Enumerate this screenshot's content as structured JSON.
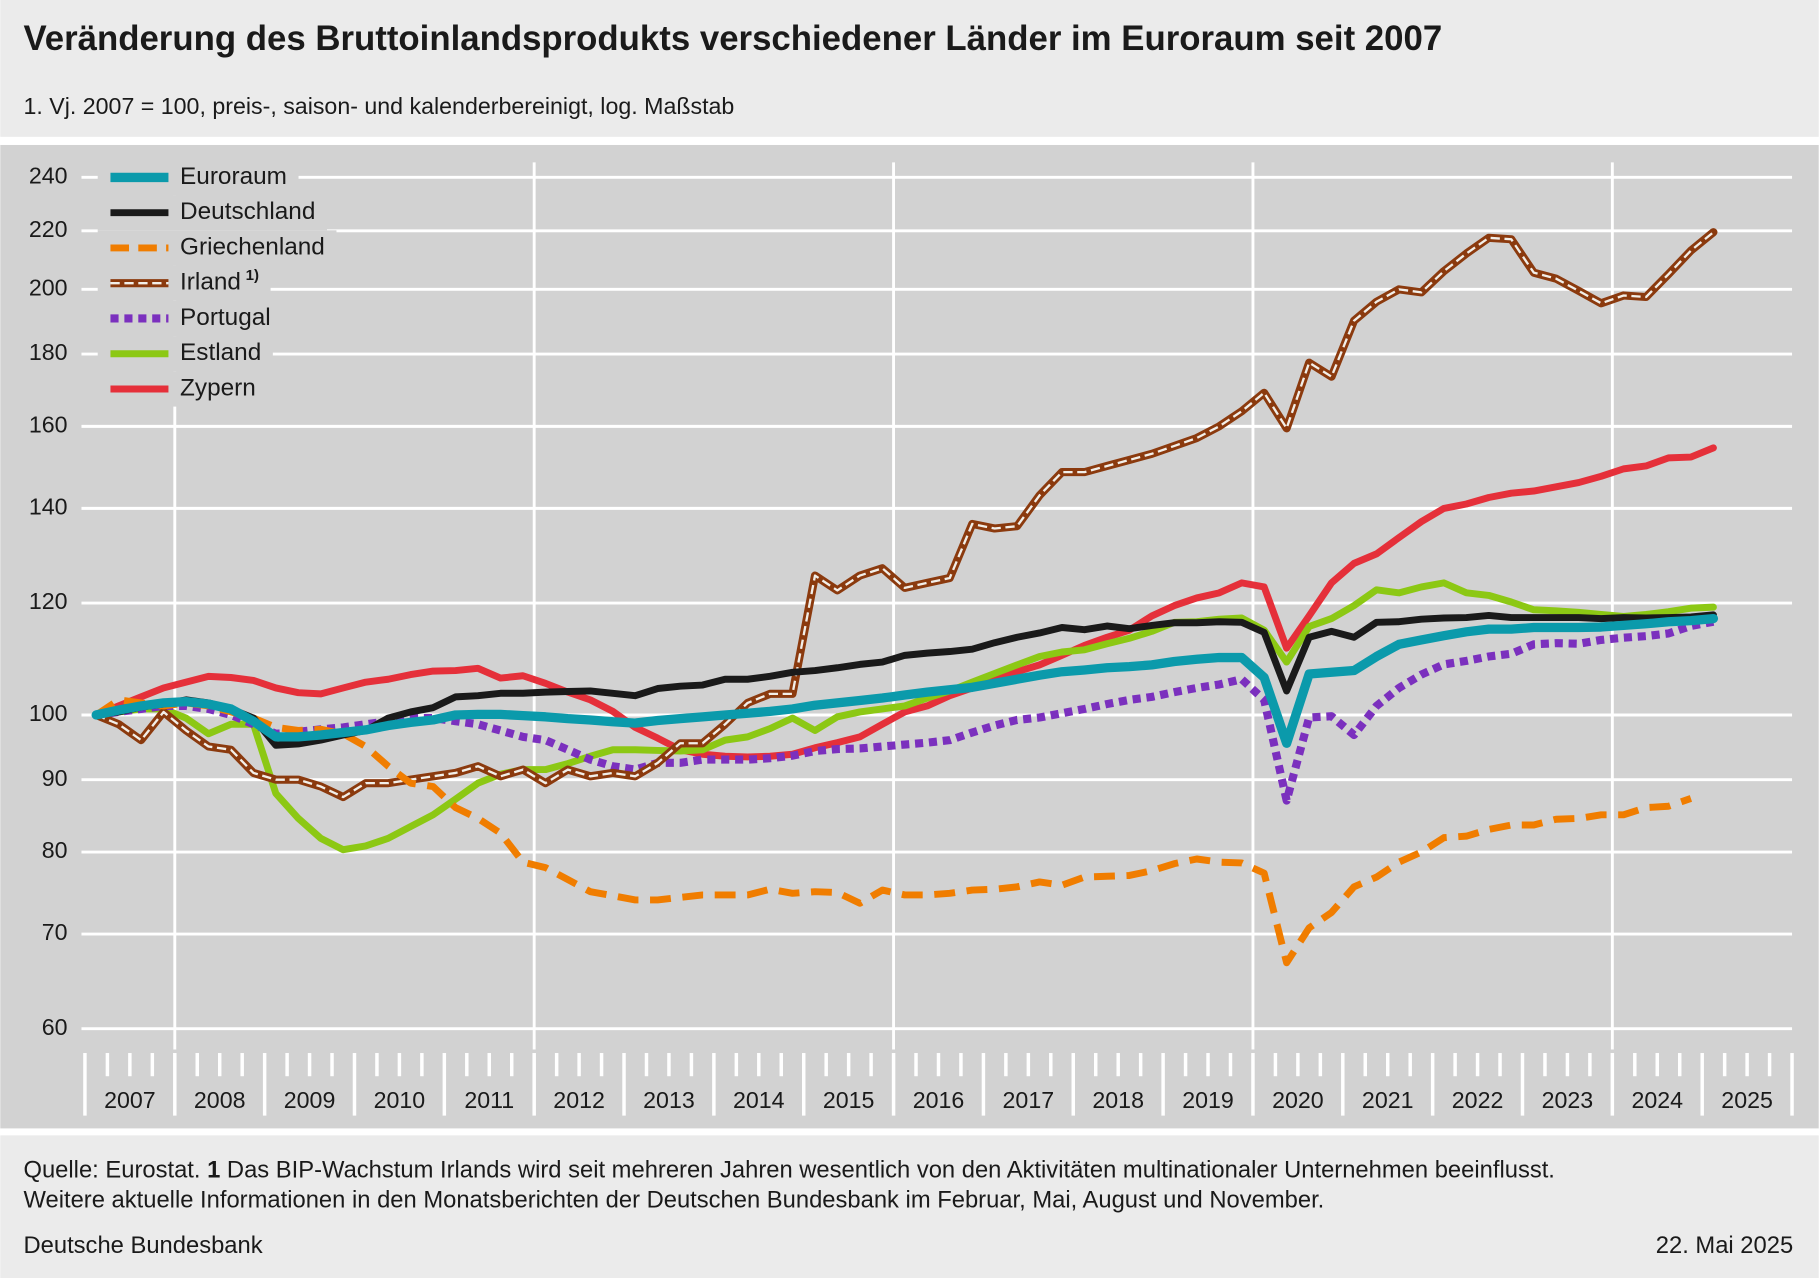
{
  "chart_data": {
    "type": "line",
    "title": "Veränderung des Bruttoinlandsprodukts verschiedener Länder im Euroraum seit 2007",
    "subtitle": "1. Vj. 2007 = 100, preis-, saison- und kalenderbereinigt, log. Maßstab",
    "log_scale": true,
    "grid": true,
    "legend": "upper left",
    "ylim": [
      58,
      253
    ],
    "yticks": [
      60,
      70,
      80,
      90,
      100,
      120,
      140,
      160,
      180,
      200,
      220,
      240
    ],
    "xlim": [
      2007,
      2026
    ],
    "xticks": [
      {
        "value": 2007.5,
        "label": "2007"
      },
      {
        "value": 2008.5,
        "label": "2008"
      },
      {
        "value": 2009.5,
        "label": "2009"
      },
      {
        "value": 2010.5,
        "label": "2010"
      },
      {
        "value": 2011.5,
        "label": "2011"
      },
      {
        "value": 2012.5,
        "label": "2012"
      },
      {
        "value": 2013.5,
        "label": "2013"
      },
      {
        "value": 2014.5,
        "label": "2014"
      },
      {
        "value": 2015.5,
        "label": "2015"
      },
      {
        "value": 2016.5,
        "label": "2016"
      },
      {
        "value": 2017.5,
        "label": "2017"
      },
      {
        "value": 2018.5,
        "label": "2018"
      },
      {
        "value": 2019.5,
        "label": "2019"
      },
      {
        "value": 2020.5,
        "label": "2020"
      },
      {
        "value": 2021.5,
        "label": "2021"
      },
      {
        "value": 2022.5,
        "label": "2022"
      },
      {
        "value": 2023.5,
        "label": "2023"
      },
      {
        "value": 2024.5,
        "label": "2024"
      },
      {
        "value": 2025.5,
        "label": "2025"
      }
    ],
    "xgrid_lines": [
      2008,
      2012,
      2016,
      2020,
      2024
    ],
    "x": [
      2007.125,
      2007.375,
      2007.625,
      2007.875,
      2008.125,
      2008.375,
      2008.625,
      2008.875,
      2009.125,
      2009.375,
      2009.625,
      2009.875,
      2010.125,
      2010.375,
      2010.625,
      2010.875,
      2011.125,
      2011.375,
      2011.625,
      2011.875,
      2012.125,
      2012.375,
      2012.625,
      2012.875,
      2013.125,
      2013.375,
      2013.625,
      2013.875,
      2014.125,
      2014.375,
      2014.625,
      2014.875,
      2015.125,
      2015.375,
      2015.625,
      2015.875,
      2016.125,
      2016.375,
      2016.625,
      2016.875,
      2017.125,
      2017.375,
      2017.625,
      2017.875,
      2018.125,
      2018.375,
      2018.625,
      2018.875,
      2019.125,
      2019.375,
      2019.625,
      2019.875,
      2020.125,
      2020.375,
      2020.625,
      2020.875,
      2021.125,
      2021.375,
      2021.625,
      2021.875,
      2022.125,
      2022.375,
      2022.625,
      2022.875,
      2023.125,
      2023.375,
      2023.625,
      2023.875,
      2024.125,
      2024.375,
      2024.625,
      2024.875,
      2025.125
    ],
    "series": [
      {
        "name": "Euroraum",
        "color": "#0b9aab",
        "line_style": "solid",
        "values": [
          100,
          100.8,
          101.5,
          102,
          102.2,
          101.8,
          101,
          99,
          96.5,
          96.5,
          96.8,
          97.2,
          97.6,
          98.3,
          98.8,
          99.2,
          100,
          100.1,
          100.1,
          99.9,
          99.7,
          99.4,
          99.2,
          98.9,
          98.7,
          99.1,
          99.4,
          99.7,
          100,
          100.3,
          100.6,
          101,
          101.6,
          102,
          102.4,
          102.8,
          103.3,
          103.8,
          104.2,
          104.6,
          105.3,
          106,
          106.7,
          107.3,
          107.6,
          108,
          108.2,
          108.5,
          109.1,
          109.5,
          109.8,
          109.8,
          106.3,
          95.5,
          106.9,
          107.2,
          107.5,
          110,
          112.2,
          113,
          113.8,
          114.5,
          115,
          115,
          115.3,
          115.3,
          115.3,
          115.4,
          115.7,
          116,
          116.4,
          116.6,
          117
        ]
      },
      {
        "name": "Deutschland",
        "color": "#1a1a1a",
        "line_style": "solid",
        "values": [
          100,
          100.5,
          101.3,
          101.8,
          102.5,
          102,
          101,
          99.5,
          95.2,
          95.4,
          96,
          96.8,
          97.5,
          99.5,
          100.5,
          101.2,
          103,
          103.2,
          103.6,
          103.6,
          103.8,
          103.9,
          104,
          103.6,
          103.2,
          104.4,
          104.8,
          105,
          106,
          106,
          106.5,
          107.2,
          107.5,
          108,
          108.6,
          109,
          110.2,
          110.6,
          110.9,
          111.3,
          112.5,
          113.5,
          114.3,
          115.3,
          114.9,
          115.6,
          115.1,
          115.7,
          116.2,
          116.2,
          116.4,
          116.3,
          114.4,
          104,
          113.5,
          114.6,
          113.5,
          116.3,
          116.4,
          116.9,
          117.1,
          117.2,
          117.6,
          117.2,
          117.2,
          117.2,
          117.2,
          117,
          117.2,
          117.1,
          117.2,
          117.3,
          117.7
        ]
      },
      {
        "name": "Griechenland",
        "color": "#f07d00",
        "line_style": "dashed",
        "values": [
          100,
          102.5,
          102,
          101.5,
          102,
          101.5,
          100.5,
          99.5,
          98,
          97.5,
          97.7,
          97,
          95,
          92,
          89.5,
          89,
          86,
          84.5,
          82.5,
          78.7,
          78,
          76.5,
          75,
          74.5,
          74,
          74,
          74.3,
          74.6,
          74.6,
          74.6,
          75.3,
          74.8,
          75,
          74.9,
          73.6,
          75.2,
          74.6,
          74.6,
          74.8,
          75.2,
          75.3,
          75.6,
          76.2,
          75.8,
          76.8,
          76.9,
          77,
          77.6,
          78.5,
          79.1,
          78.7,
          78.6,
          77.3,
          66.8,
          70.7,
          72.5,
          75.6,
          76.8,
          78.7,
          80,
          81.9,
          82.1,
          83,
          83.6,
          83.6,
          84.4,
          84.5,
          85,
          85,
          86,
          86.2,
          87.3,
          null
        ]
      },
      {
        "name": "Irland",
        "note": "1)",
        "color": "#8b3a0e",
        "line_style": "double",
        "values": [
          100,
          98.5,
          96,
          100.5,
          97.5,
          95,
          94.5,
          91,
          90,
          90,
          89,
          87.5,
          89.5,
          89.5,
          90,
          90.5,
          91,
          92,
          90.5,
          91.5,
          89.5,
          91.5,
          90.5,
          91,
          90.5,
          92.5,
          95.5,
          95.5,
          98.5,
          102,
          103.5,
          103.5,
          125.5,
          122.5,
          125.5,
          127,
          123,
          124,
          125,
          136.5,
          135.5,
          136,
          143,
          148.5,
          148.5,
          150,
          151.5,
          153,
          155,
          157,
          160,
          164,
          169,
          159.5,
          177.5,
          173.5,
          190,
          196,
          200,
          199,
          206,
          212,
          217.5,
          217,
          205.5,
          203.5,
          199.5,
          195.5,
          198,
          197.5,
          205,
          213,
          219.5
        ]
      },
      {
        "name": "Portugal",
        "color": "#7b30be",
        "line_style": "dotted",
        "values": [
          100,
          100.5,
          101,
          101.5,
          101.5,
          101,
          100,
          98.5,
          97,
          97.3,
          97.7,
          98,
          98.5,
          99,
          99.5,
          99.5,
          99,
          98.5,
          97.5,
          96.5,
          96,
          94.5,
          93,
          92,
          91.5,
          92.5,
          92.5,
          93,
          93,
          93,
          93.2,
          93.6,
          94.3,
          94.6,
          94.7,
          95,
          95.3,
          95.6,
          96,
          97.2,
          98.3,
          99.2,
          99.6,
          100.3,
          101,
          101.8,
          102.5,
          103,
          103.8,
          104.5,
          105.1,
          106,
          102.5,
          87,
          99.6,
          99.8,
          96.8,
          101.5,
          104.5,
          106.8,
          108.6,
          109.2,
          110,
          110.5,
          112.2,
          112.4,
          112.3,
          113,
          113.4,
          113.7,
          114.2,
          115.6,
          116.4
        ]
      },
      {
        "name": "Estland",
        "color": "#8cc814",
        "line_style": "solid",
        "values": [
          100,
          100.5,
          101,
          101,
          99.5,
          97,
          98.5,
          98.5,
          88,
          84.5,
          81.8,
          80.3,
          80.8,
          81.8,
          83.4,
          85,
          87.2,
          89.5,
          90.8,
          91.5,
          91.5,
          92.4,
          93.5,
          94.5,
          94.5,
          94.4,
          94.3,
          94.5,
          96,
          96.5,
          97.8,
          99.5,
          97.5,
          99.7,
          100.5,
          101,
          101.5,
          102.8,
          104,
          105.5,
          107,
          108.5,
          110,
          110.8,
          111.2,
          112.3,
          113.3,
          114.6,
          116.3,
          116.4,
          116.9,
          117.1,
          114.8,
          109,
          115.5,
          117,
          119.5,
          122.6,
          122,
          123.2,
          124,
          122,
          121.5,
          120.2,
          118.7,
          118.5,
          118.2,
          117.8,
          117.4,
          117.8,
          118.3,
          119,
          119.2
        ]
      },
      {
        "name": "Zypern",
        "color": "#e5303a",
        "line_style": "solid",
        "values": [
          100,
          101.5,
          103,
          104.5,
          105.5,
          106.5,
          106.3,
          105.8,
          104.5,
          103.7,
          103.5,
          104.5,
          105.5,
          106,
          106.8,
          107.4,
          107.5,
          107.9,
          106.2,
          106.6,
          105.3,
          103.8,
          102.5,
          100.6,
          98,
          96.3,
          94.5,
          93.8,
          93.5,
          93.4,
          93.5,
          93.8,
          94.8,
          95.6,
          96.5,
          98.5,
          100.5,
          101.5,
          103.2,
          104.5,
          106.2,
          107.3,
          108.5,
          110.2,
          112,
          113.5,
          114.8,
          117.5,
          119.5,
          121,
          122,
          124,
          123.2,
          111.5,
          117.5,
          124,
          128,
          130,
          133.5,
          137,
          140,
          141,
          142.5,
          143.5,
          144,
          145,
          146,
          147.5,
          149.3,
          150,
          152,
          152.2,
          154.5
        ]
      }
    ],
    "source": "Quelle: Eurostat.",
    "footnote_marker": "1",
    "footnote": "Das BIP-Wachstum Irlands wird seit mehreren Jahren wesentlich von den Aktivitäten multinationaler Unternehmen beeinflusst.",
    "note": "Weitere aktuelle Informationen in den Monatsberichten der Deutschen Bundesbank im Februar, Mai, August und November.",
    "publisher": "Deutsche Bundesbank",
    "date": "22. Mai 2025"
  }
}
